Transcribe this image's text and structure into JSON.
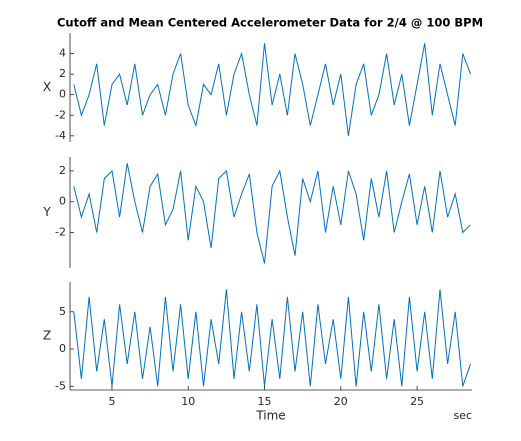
{
  "chart_data": [
    {
      "type": "line",
      "title": "Cutoff and Mean Centered Accelerometer Data for 2/4 @ 100 BPM",
      "ylabel": "X",
      "color": "#0072bd",
      "x": [
        2.5,
        3,
        3.5,
        4,
        4.5,
        5,
        5.5,
        6,
        6.5,
        7,
        7.5,
        8,
        8.5,
        9,
        9.5,
        10,
        10.5,
        11,
        11.5,
        12,
        12.5,
        13,
        13.5,
        14,
        14.5,
        15,
        15.5,
        16,
        16.5,
        17,
        17.5,
        18,
        18.5,
        19,
        19.5,
        20,
        20.5,
        21,
        21.5,
        22,
        22.5,
        23,
        23.5,
        24,
        24.5,
        25,
        25.5,
        26,
        26.5,
        27,
        27.5,
        28,
        28.5
      ],
      "values": [
        1,
        -2,
        0,
        3,
        -3,
        1,
        2,
        -1,
        3,
        -2,
        0,
        1,
        -2,
        2,
        4,
        -1,
        -3,
        1,
        0,
        3,
        -2,
        2,
        4,
        0,
        -3,
        5,
        -1,
        2,
        -2,
        4,
        1,
        -3,
        0,
        3,
        -1,
        2,
        -4,
        1,
        3,
        -2,
        0,
        4,
        -1,
        2,
        -3,
        1,
        5,
        -2,
        3,
        0,
        -3,
        4,
        2
      ],
      "xlim": [
        2.25,
        28.6
      ],
      "ylim": [
        -4.6,
        6
      ],
      "yticks": [
        -4,
        -2,
        0,
        2,
        4
      ]
    },
    {
      "type": "line",
      "ylabel": "Y",
      "color": "#0072bd",
      "x": [
        2.5,
        3,
        3.5,
        4,
        4.5,
        5,
        5.5,
        6,
        6.5,
        7,
        7.5,
        8,
        8.5,
        9,
        9.5,
        10,
        10.5,
        11,
        11.5,
        12,
        12.5,
        13,
        13.5,
        14,
        14.5,
        15,
        15.5,
        16,
        16.5,
        17,
        17.5,
        18,
        18.5,
        19,
        19.5,
        20,
        20.5,
        21,
        21.5,
        22,
        22.5,
        23,
        23.5,
        24,
        24.5,
        25,
        25.5,
        26,
        26.5,
        27,
        27.5,
        28,
        28.5
      ],
      "values": [
        1,
        -1,
        0.5,
        -2,
        1.5,
        2,
        -1,
        2.5,
        0,
        -2,
        1,
        1.8,
        -1.5,
        -0.5,
        2,
        -2.5,
        1,
        0,
        -3,
        1.5,
        2,
        -1,
        0.5,
        1.8,
        -2,
        -4,
        1,
        2,
        -1,
        -3.5,
        1.5,
        0,
        2,
        -2,
        1,
        -1.5,
        2,
        0.5,
        -2.5,
        1.5,
        -1,
        2,
        -2,
        0,
        1.8,
        -1.5,
        1,
        -2,
        2,
        -1,
        0.5,
        -2,
        -1.5
      ],
      "xlim": [
        2.25,
        28.6
      ],
      "ylim": [
        -4.3,
        2.9
      ],
      "yticks": [
        -2,
        0,
        2
      ]
    },
    {
      "type": "line",
      "ylabel": "Z",
      "xlabel": "Time",
      "annotation": "sec",
      "color": "#0072bd",
      "x": [
        2.5,
        3,
        3.5,
        4,
        4.5,
        5,
        5.5,
        6,
        6.5,
        7,
        7.5,
        8,
        8.5,
        9,
        9.5,
        10,
        10.5,
        11,
        11.5,
        12,
        12.5,
        13,
        13.5,
        14,
        14.5,
        15,
        15.5,
        16,
        16.5,
        17,
        17.5,
        18,
        18.5,
        19,
        19.5,
        20,
        20.5,
        21,
        21.5,
        22,
        22.5,
        23,
        23.5,
        24,
        24.5,
        25,
        25.5,
        26,
        26.5,
        27,
        27.5,
        28,
        28.5
      ],
      "values": [
        5,
        -4,
        7,
        -3,
        4,
        -5,
        6,
        -2,
        5,
        -4,
        3,
        -5,
        7,
        -3,
        6,
        -4,
        5,
        -5,
        4,
        -2,
        8,
        -4,
        5,
        -3,
        6,
        -5,
        4,
        -4,
        7,
        -3,
        5,
        -5,
        6,
        -2,
        4,
        -4,
        7,
        -5,
        5,
        -3,
        6,
        -4,
        4,
        -5,
        7,
        -3,
        5,
        -4,
        8,
        -2,
        5,
        -5,
        -2
      ],
      "xlim": [
        2.25,
        28.6
      ],
      "ylim": [
        -5.5,
        9
      ],
      "yticks": [
        -5,
        0,
        5
      ],
      "xticks": [
        5,
        10,
        15,
        20,
        25
      ]
    }
  ]
}
